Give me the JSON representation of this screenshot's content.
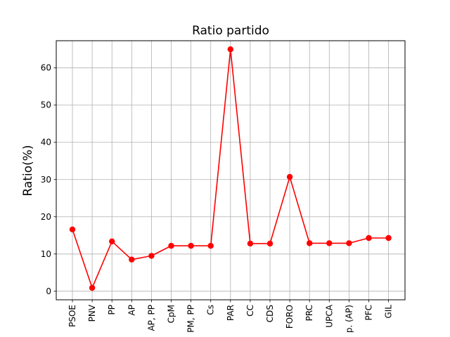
{
  "chart_data": {
    "type": "line",
    "title": "Ratio partido",
    "xlabel": "",
    "ylabel": "Ratio(%)",
    "categories": [
      "PSOE",
      "PNV",
      "PP",
      "AP",
      "AP, PP",
      "CpM",
      "PM, PP",
      "Cs",
      "PAR",
      "CC",
      "CDS",
      "FORO",
      "PRC",
      "UPCA",
      "p. (AP)",
      "PFC",
      "GIL"
    ],
    "series": [
      {
        "values": [
          16.6,
          0.9,
          13.4,
          8.5,
          9.5,
          12.2,
          12.2,
          12.2,
          65.0,
          12.8,
          12.8,
          30.7,
          12.9,
          12.9,
          12.9,
          14.3,
          14.3
        ],
        "color": "#ff0000"
      }
    ],
    "ylim": [
      -2.3,
      67.3
    ],
    "yticks": [
      0,
      10,
      20,
      30,
      40,
      50,
      60
    ],
    "grid": true,
    "legend": "none"
  }
}
